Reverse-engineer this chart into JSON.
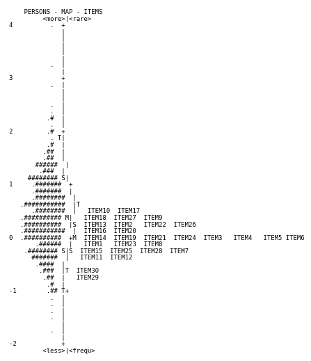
{
  "bg_color": "#ffffff",
  "text_color": "#000000",
  "font_size": 6.5,
  "content_lines": [
    "    PERSONS - MAP - ITEMS",
    "         <more>|<rare>",
    "4          .  +",
    "              |",
    "              |",
    "              |",
    "              |",
    "              |",
    "           .  |",
    "              |",
    "3             +",
    "           .  |",
    "              |",
    "              |",
    "           .  |",
    "           .  |",
    "          .#  |",
    "           .  |",
    "2         .#  +",
    "           . T|",
    "          .#  |",
    "         .##  |",
    "         .##  |",
    "       ######  |",
    "        .###  |",
    "     ######## S|",
    "1     .#######  +",
    "      .#######  |",
    "      .########  |",
    "   .###########  |T",
    "      .########  |   ITEM10  ITEM17",
    "   .########## M|   ITEM18  ITEM27  ITEM9",
    "   .##########  |S  ITEM13  ITEM2   ITEM22  ITEM26",
    "   .###########  |  ITEM16  ITEM20",
    "0  .##########  +M  ITEM14  ITEM19  ITEM21  ITEM24  ITEM3   ITEM4   ITEM5 ITEM6",
    "       .######  |   ITEM1   ITEM23  ITEM8",
    "    .######## S|S  ITEM15  ITEM25  ITEM28  ITEM7",
    "      #######  |   ITEM11  ITEM12",
    "       .####  |",
    "        .###  |T  ITEM30",
    "         .##  |   ITEM29",
    "          .#  |",
    "-1        .## T+",
    "           .  |",
    "           .  |",
    "           .  |",
    "           .  |",
    "              |",
    "           .  |",
    "              |",
    "-2            +",
    "         <less>|<frequ>"
  ]
}
